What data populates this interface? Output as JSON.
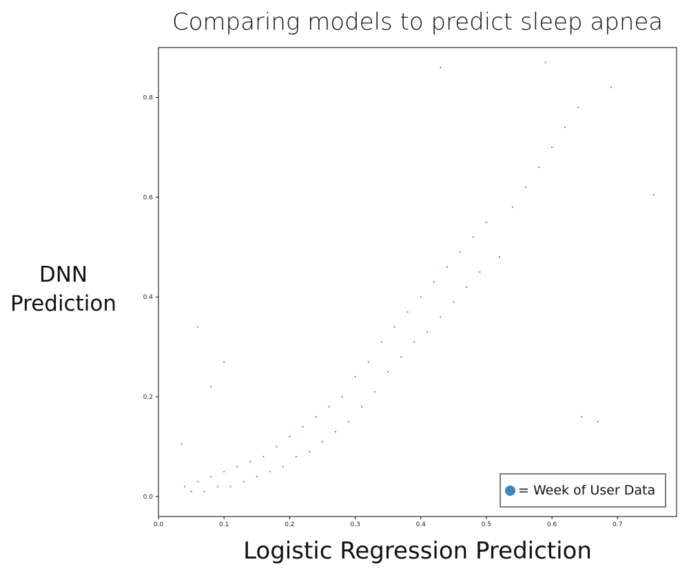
{
  "chart_data": {
    "type": "scatter",
    "title": "Comparing models to predict sleep apnea",
    "xlabel": "Logistic Regression Prediction",
    "ylabel_lines": [
      "DNN",
      "Prediction"
    ],
    "xlim": [
      0.0,
      0.79
    ],
    "ylim": [
      -0.04,
      0.9
    ],
    "x_ticks": [
      0.0,
      0.1,
      0.2,
      0.3,
      0.4,
      0.5,
      0.6,
      0.7
    ],
    "x_tick_labels": [
      "0.0",
      "0.1",
      "0.2",
      "0.3",
      "0.4",
      "0.5",
      "0.6",
      "0.7"
    ],
    "y_ticks": [
      0.0,
      0.2,
      0.4,
      0.6,
      0.8
    ],
    "y_tick_labels": [
      "0.0",
      "0.2",
      "0.4",
      "0.6",
      "0.8"
    ],
    "grid": false,
    "marker_color": "#1f77b4",
    "legend": {
      "label": "= Week of User Data",
      "position": "bottom-right",
      "marker_color": "#3a86c4"
    },
    "series": [
      {
        "name": "Week of User Data",
        "points": [
          [
            0.04,
            0.02
          ],
          [
            0.05,
            0.01
          ],
          [
            0.06,
            0.03
          ],
          [
            0.07,
            0.01
          ],
          [
            0.08,
            0.04
          ],
          [
            0.09,
            0.02
          ],
          [
            0.1,
            0.05
          ],
          [
            0.11,
            0.02
          ],
          [
            0.12,
            0.06
          ],
          [
            0.13,
            0.03
          ],
          [
            0.14,
            0.07
          ],
          [
            0.15,
            0.04
          ],
          [
            0.16,
            0.08
          ],
          [
            0.17,
            0.05
          ],
          [
            0.18,
            0.1
          ],
          [
            0.19,
            0.06
          ],
          [
            0.2,
            0.12
          ],
          [
            0.21,
            0.08
          ],
          [
            0.22,
            0.14
          ],
          [
            0.23,
            0.09
          ],
          [
            0.24,
            0.16
          ],
          [
            0.25,
            0.11
          ],
          [
            0.26,
            0.18
          ],
          [
            0.27,
            0.13
          ],
          [
            0.28,
            0.2
          ],
          [
            0.29,
            0.15
          ],
          [
            0.3,
            0.24
          ],
          [
            0.31,
            0.18
          ],
          [
            0.32,
            0.27
          ],
          [
            0.33,
            0.21
          ],
          [
            0.34,
            0.31
          ],
          [
            0.35,
            0.25
          ],
          [
            0.36,
            0.34
          ],
          [
            0.37,
            0.28
          ],
          [
            0.38,
            0.37
          ],
          [
            0.39,
            0.31
          ],
          [
            0.4,
            0.4
          ],
          [
            0.41,
            0.33
          ],
          [
            0.42,
            0.43
          ],
          [
            0.43,
            0.36
          ],
          [
            0.44,
            0.46
          ],
          [
            0.45,
            0.39
          ],
          [
            0.46,
            0.49
          ],
          [
            0.47,
            0.42
          ],
          [
            0.48,
            0.52
          ],
          [
            0.49,
            0.45
          ],
          [
            0.5,
            0.55
          ],
          [
            0.52,
            0.48
          ],
          [
            0.54,
            0.58
          ],
          [
            0.56,
            0.62
          ],
          [
            0.58,
            0.66
          ],
          [
            0.6,
            0.7
          ],
          [
            0.62,
            0.74
          ],
          [
            0.64,
            0.78
          ],
          [
            0.69,
            0.82
          ],
          [
            0.06,
            0.34
          ],
          [
            0.035,
            0.105
          ],
          [
            0.08,
            0.22
          ],
          [
            0.1,
            0.27
          ],
          [
            0.43,
            0.86
          ],
          [
            0.59,
            0.87
          ],
          [
            0.755,
            0.605
          ],
          [
            0.67,
            0.15
          ],
          [
            0.645,
            0.16
          ]
        ]
      }
    ]
  }
}
